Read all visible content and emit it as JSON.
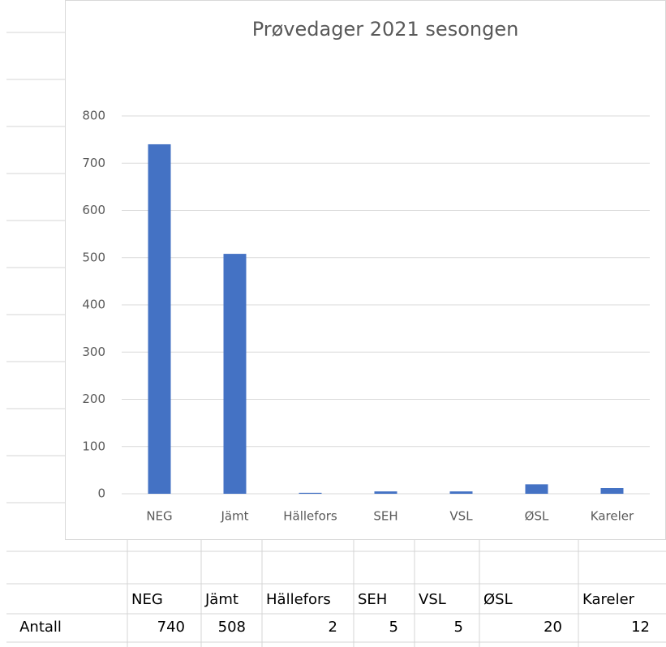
{
  "chart_data": {
    "type": "bar",
    "title": "Prøvedager 2021 sesongen",
    "categories": [
      "NEG",
      "Jämt",
      "Hällefors",
      "SEH",
      "VSL",
      "ØSL",
      "Kareler"
    ],
    "values": [
      740,
      508,
      2,
      5,
      5,
      20,
      12
    ],
    "color": "#4472c4",
    "ylim": [
      0,
      800
    ],
    "yticks": [
      0,
      100,
      200,
      300,
      400,
      500,
      600,
      700,
      800
    ],
    "grid": true
  },
  "table": {
    "row_label": "Antall"
  }
}
